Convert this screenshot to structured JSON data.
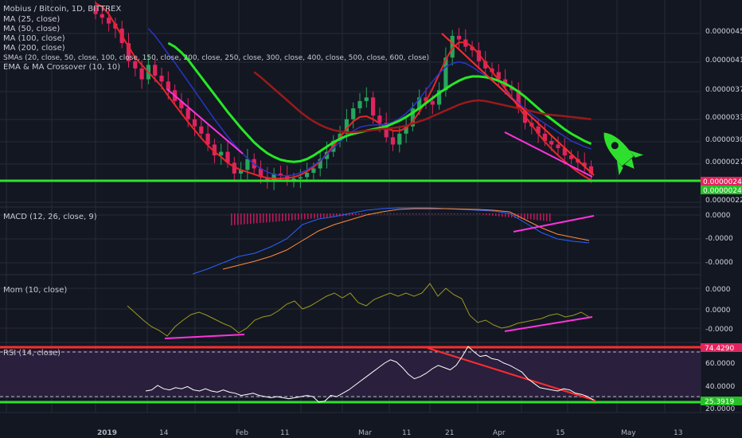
{
  "colors": {
    "background": "#131722",
    "grid": "#262b38",
    "candle_up": "#26a65b",
    "candle_down": "#e0245e",
    "support_green": "#2fe02f",
    "resistance_red": "#ff2d2d",
    "trend_magenta": "#ff33dd",
    "ma_red": "#e8262a",
    "ma_green": "#26e826",
    "ma_blue": "#2a35c8",
    "ma_dark_red": "#9a1a1a",
    "macd_blue": "#2962ff",
    "macd_orange": "#ff8c3a",
    "mom_olive": "#9b9b1e",
    "rsi_white": "#ffffff",
    "rsi_band": "#2a1f3d"
  },
  "legend": {
    "symbol": "Mobius / Bitcoin, 1D, BITTREX",
    "lines": [
      "MA (25, close)",
      "MA (50, close)",
      "MA (100, close)",
      "MA (200, close)",
      "SMAs (20, close, 50, close, 100, close, 150, close, 200, close, 250, close, 300, close, 400, close, 500, close, 600, close)",
      "EMA & MA Crossover (10, 10)"
    ]
  },
  "icons": {
    "rocket": "rocket-icon"
  },
  "chart_data": [
    {
      "type": "candlestick",
      "panel": "price",
      "y_axis_labels": [
        "0.00000450",
        "0.00000410",
        "0.00000370",
        "0.00000330",
        "0.00000300",
        "0.00000270",
        "0.00000220"
      ],
      "price_badges": {
        "red": "0.00000245",
        "green": "0.00000245"
      },
      "ylim": [
        2.1e-06,
        4.7e-06
      ],
      "closes": [
        4.75,
        4.7,
        4.62,
        4.55,
        4.35,
        4.1,
        4.0,
        3.85,
        4.05,
        3.9,
        3.82,
        3.7,
        3.55,
        3.45,
        3.3,
        3.2,
        3.1,
        2.95,
        2.8,
        2.85,
        2.7,
        2.55,
        2.6,
        2.75,
        2.62,
        2.5,
        2.45,
        2.55,
        2.52,
        2.47,
        2.48,
        2.5,
        2.56,
        2.62,
        2.75,
        2.85,
        3.0,
        3.1,
        3.3,
        3.45,
        3.55,
        3.6,
        3.35,
        3.25,
        3.05,
        2.95,
        3.1,
        3.2,
        3.45,
        3.6,
        3.55,
        3.5,
        3.7,
        4.15,
        4.45,
        4.4,
        4.3,
        4.25,
        4.1,
        4.0,
        3.95,
        3.85,
        3.75,
        3.7,
        3.45,
        3.25,
        3.2,
        3.1,
        3.0,
        2.95,
        2.9,
        2.8,
        2.75,
        2.7,
        2.65,
        2.55
      ],
      "support_level": 2.45e-06,
      "moving_averages": [
        {
          "color": "red",
          "values": [
            4.9,
            4.85,
            4.75,
            4.6,
            4.45,
            4.3,
            4.15,
            4.05,
            3.95,
            3.85,
            3.75,
            3.62,
            3.5,
            3.38,
            3.26,
            3.15,
            3.04,
            2.94,
            2.85,
            2.78,
            2.7,
            2.64,
            2.6,
            2.57,
            2.54,
            2.51,
            2.49,
            2.48,
            2.48,
            2.49,
            2.5,
            2.53,
            2.58,
            2.64,
            2.72,
            2.82,
            2.93,
            3.05,
            3.17,
            3.27,
            3.33,
            3.34,
            3.3,
            3.24,
            3.18,
            3.14,
            3.14,
            3.18,
            3.27,
            3.4,
            3.55,
            3.72,
            3.92,
            4.12,
            4.28,
            4.36,
            4.36,
            4.3,
            4.2,
            4.08,
            3.96,
            3.84,
            3.72,
            3.6,
            3.47,
            3.34,
            3.22,
            3.1,
            2.99,
            2.89,
            2.8,
            2.72,
            2.64,
            2.57,
            2.51,
            2.46
          ]
        },
        {
          "color": "blue",
          "values": [
            null,
            null,
            null,
            null,
            null,
            null,
            null,
            null,
            4.55,
            4.45,
            4.33,
            4.2,
            4.08,
            3.95,
            3.82,
            3.69,
            3.56,
            3.43,
            3.3,
            3.18,
            3.06,
            2.95,
            2.85,
            2.76,
            2.68,
            2.62,
            2.57,
            2.54,
            2.52,
            2.52,
            2.53,
            2.56,
            2.6,
            2.66,
            2.73,
            2.81,
            2.9,
            2.99,
            3.07,
            3.14,
            3.19,
            3.21,
            3.22,
            3.22,
            3.23,
            3.26,
            3.31,
            3.38,
            3.47,
            3.58,
            3.7,
            3.82,
            3.93,
            4.02,
            4.07,
            4.09,
            4.07,
            4.02,
            3.96,
            3.9,
            3.83,
            3.76,
            3.68,
            3.6,
            3.52,
            3.44,
            3.37,
            3.3,
            3.24,
            3.18,
            3.12,
            3.06,
            3.0,
            2.96,
            2.92,
            2.89
          ]
        },
        {
          "color": "green",
          "values": [
            null,
            null,
            null,
            null,
            null,
            null,
            null,
            null,
            null,
            null,
            null,
            4.35,
            4.3,
            4.22,
            4.12,
            4.0,
            3.88,
            3.76,
            3.64,
            3.52,
            3.4,
            3.29,
            3.18,
            3.08,
            2.98,
            2.9,
            2.83,
            2.78,
            2.74,
            2.72,
            2.71,
            2.72,
            2.75,
            2.8,
            2.86,
            2.92,
            2.98,
            3.03,
            3.07,
            3.1,
            3.12,
            3.14,
            3.16,
            3.18,
            3.2,
            3.24,
            3.28,
            3.33,
            3.39,
            3.45,
            3.52,
            3.59,
            3.66,
            3.72,
            3.78,
            3.83,
            3.87,
            3.89,
            3.89,
            3.88,
            3.86,
            3.83,
            3.79,
            3.74,
            3.68,
            3.61,
            3.53,
            3.45,
            3.37,
            3.3,
            3.23,
            3.16,
            3.1,
            3.05,
            3.0,
            2.96
          ]
        },
        {
          "color": "dark-red",
          "values": [
            null,
            null,
            null,
            null,
            null,
            null,
            null,
            null,
            null,
            null,
            null,
            null,
            null,
            null,
            null,
            null,
            null,
            null,
            null,
            null,
            null,
            null,
            null,
            null,
            3.95,
            3.88,
            3.8,
            3.72,
            3.64,
            3.56,
            3.48,
            3.4,
            3.33,
            3.27,
            3.22,
            3.18,
            3.15,
            3.13,
            3.12,
            3.12,
            3.13,
            3.14,
            3.15,
            3.16,
            3.17,
            3.18,
            3.19,
            3.21,
            3.24,
            3.27,
            3.3,
            3.34,
            3.38,
            3.42,
            3.46,
            3.5,
            3.53,
            3.55,
            3.56,
            3.55,
            3.53,
            3.51,
            3.49,
            3.47,
            3.45,
            3.43,
            3.41,
            3.39,
            3.37,
            3.36,
            3.35,
            3.34,
            3.33,
            3.32,
            3.31,
            3.3
          ]
        }
      ]
    },
    {
      "type": "line",
      "panel": "macd",
      "title": "MACD (12, 26, close, 9)",
      "y_axis_labels": [
        "0.0000",
        "-0.0000",
        "-0.0000"
      ]
    },
    {
      "type": "line",
      "panel": "momentum",
      "title": "Mom (10, close)",
      "y_axis_labels": [
        "0.0000",
        "0.0000",
        "-0.0000"
      ]
    },
    {
      "type": "line",
      "panel": "rsi",
      "title": "RSI (14, close)",
      "y_axis_labels": [
        "60.0000",
        "40.0000",
        "20.0000"
      ],
      "badges": {
        "upper": "74.4290",
        "lower": "25.3919"
      },
      "ylim": [
        15,
        78
      ],
      "upper_band": 70,
      "lower_band": 30,
      "values": [
        35,
        36,
        40,
        37,
        36,
        38,
        37,
        39,
        36,
        35,
        37,
        35,
        34,
        36,
        34,
        33,
        31,
        32,
        33,
        31,
        30,
        29,
        30,
        29,
        28,
        29,
        30,
        31,
        30,
        25,
        26,
        31,
        30,
        33,
        36,
        40,
        44,
        48,
        52,
        56,
        60,
        63,
        61,
        56,
        50,
        46,
        48,
        51,
        55,
        58,
        56,
        54,
        58,
        66,
        75,
        70,
        66,
        67,
        64,
        63,
        60,
        58,
        55,
        52,
        46,
        42,
        38,
        37,
        36,
        35,
        37,
        36,
        33,
        32,
        30,
        27
      ]
    }
  ],
  "x_axis": {
    "labels": [
      "2019",
      "14",
      "Feb",
      "11",
      "Mar",
      "11",
      "21",
      "Apr",
      "15",
      "May",
      "13"
    ]
  }
}
